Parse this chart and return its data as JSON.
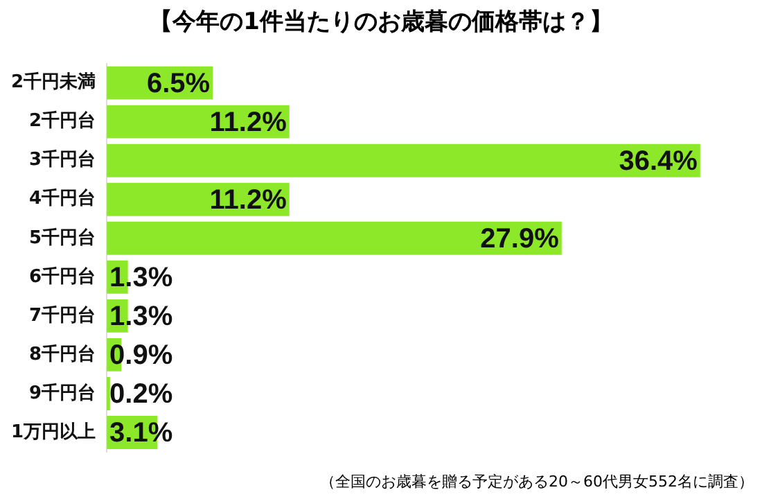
{
  "chart_data": {
    "type": "bar",
    "orientation": "horizontal",
    "title": "【今年の1件当たりのお歳暮の価格帯は？】",
    "categories": [
      "2千円未満",
      "2千円台",
      "3千円台",
      "4千円台",
      "5千円台",
      "6千円台",
      "7千円台",
      "8千円台",
      "9千円台",
      "1万円以上"
    ],
    "values": [
      6.5,
      11.2,
      36.4,
      11.2,
      27.9,
      1.3,
      1.3,
      0.9,
      0.2,
      3.1
    ],
    "color": "#8ee82a",
    "value_labels": [
      "6.5%",
      "11.2%",
      "36.4%",
      "11.2%",
      "27.9%",
      "1.3%",
      "1.3%",
      "0.9%",
      "0.2%",
      "3.1%"
    ],
    "grid": false,
    "legend": false,
    "annotations": [
      "（全国のお歳暮を贈る予定がある20～60代男女552名に調査）"
    ]
  }
}
